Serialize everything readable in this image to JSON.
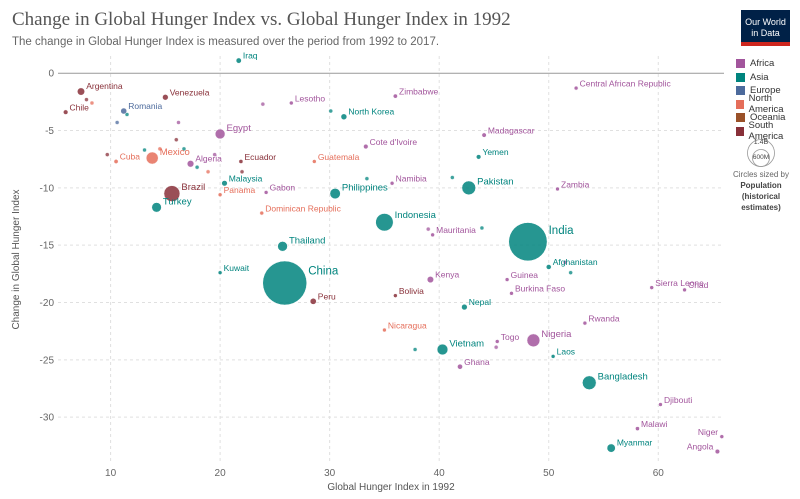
{
  "header": {
    "title": "Change in Global Hunger Index vs. Global Hunger Index in 1992",
    "subtitle": "The change in Global Hunger Index is measured over the period from 1992 to 2017.",
    "logo_line1": "Our World",
    "logo_line2": "in Data"
  },
  "legend": {
    "items": [
      {
        "label": "Africa",
        "color": "#a2559c"
      },
      {
        "label": "Asia",
        "color": "#00847e"
      },
      {
        "label": "Europe",
        "color": "#4c6a9c"
      },
      {
        "label": "North America",
        "color": "#e56e5a"
      },
      {
        "label": "Oceania",
        "color": "#9a5129"
      },
      {
        "label": "South America",
        "color": "#883039"
      }
    ]
  },
  "size_legend": {
    "large_label": "1.4B",
    "small_label": "600M",
    "caption": "Circles sized by",
    "title_line1": "Population",
    "title_line2": "(historical",
    "title_line3": "estimates)"
  },
  "chart_data": {
    "type": "scatter",
    "title": "Change in Global Hunger Index vs. Global Hunger Index in 1992",
    "subtitle": "The change in Global Hunger Index is measured over the period from 1992 to 2017.",
    "xlabel": "Global Hunger Index in 1992",
    "ylabel": "Change in Global Hunger Index",
    "xlim": [
      5.2,
      66
    ],
    "ylim": [
      -34,
      1.5
    ],
    "xticks": [
      10,
      20,
      30,
      40,
      50,
      60
    ],
    "yticks": [
      0,
      -5,
      -10,
      -15,
      -20,
      -25,
      -30
    ],
    "grid": true,
    "legend_position": "right",
    "points": [
      {
        "label": "Iraq",
        "x": 21.7,
        "y": 1.1,
        "continent": "Asia",
        "pop": 17
      },
      {
        "label": "Argentina",
        "x": 7.3,
        "y": -1.6,
        "continent": "South America",
        "pop": 33
      },
      {
        "label": "Chile",
        "x": 5.9,
        "y": -3.4,
        "continent": "South America",
        "pop": 13
      },
      {
        "label": "Venezuela",
        "x": 15.0,
        "y": -2.1,
        "continent": "South America",
        "pop": 20
      },
      {
        "label": "Romania",
        "x": 11.2,
        "y": -3.3,
        "continent": "Europe",
        "pop": 22
      },
      {
        "label": "Lesotho",
        "x": 26.5,
        "y": -2.6,
        "continent": "Africa",
        "pop": 1.7
      },
      {
        "label": "Zimbabwe",
        "x": 36.0,
        "y": -2.0,
        "continent": "Africa",
        "pop": 11
      },
      {
        "label": "Central African Republic",
        "x": 52.5,
        "y": -1.3,
        "continent": "Africa",
        "pop": 3
      },
      {
        "label": "North Korea",
        "x": 31.3,
        "y": -3.8,
        "continent": "Asia",
        "pop": 21
      },
      {
        "label": "Egypt",
        "x": 20.0,
        "y": -5.3,
        "continent": "Africa",
        "pop": 59
      },
      {
        "label": "Madagascar",
        "x": 44.1,
        "y": -5.4,
        "continent": "Africa",
        "pop": 12
      },
      {
        "label": "Cote d'Ivoire",
        "x": 33.3,
        "y": -6.4,
        "continent": "Africa",
        "pop": 13
      },
      {
        "label": "Yemen",
        "x": 43.6,
        "y": -7.3,
        "continent": "Asia",
        "pop": 13
      },
      {
        "label": "Cuba",
        "x": 10.5,
        "y": -7.7,
        "continent": "North America",
        "pop": 11
      },
      {
        "label": "Mexico",
        "x": 13.8,
        "y": -7.4,
        "continent": "North America",
        "pop": 88
      },
      {
        "label": "Algeria",
        "x": 17.3,
        "y": -7.9,
        "continent": "Africa",
        "pop": 27
      },
      {
        "label": "Ecuador",
        "x": 21.9,
        "y": -7.7,
        "continent": "South America",
        "pop": 10
      },
      {
        "label": "Guatemala",
        "x": 28.6,
        "y": -7.7,
        "continent": "North America",
        "pop": 9
      },
      {
        "label": "Malaysia",
        "x": 20.4,
        "y": -9.6,
        "continent": "Asia",
        "pop": 19
      },
      {
        "label": "Namibia",
        "x": 35.7,
        "y": -9.6,
        "continent": "Africa",
        "pop": 1.5
      },
      {
        "label": "Pakistan",
        "x": 42.7,
        "y": -10.0,
        "continent": "Asia",
        "pop": 115
      },
      {
        "label": "Zambia",
        "x": 50.8,
        "y": -10.1,
        "continent": "Africa",
        "pop": 8
      },
      {
        "label": "Brazil",
        "x": 15.6,
        "y": -10.5,
        "continent": "South America",
        "pop": 155
      },
      {
        "label": "Panama",
        "x": 20.0,
        "y": -10.6,
        "continent": "North America",
        "pop": 2.5
      },
      {
        "label": "Gabon",
        "x": 24.2,
        "y": -10.4,
        "continent": "Africa",
        "pop": 1
      },
      {
        "label": "Philippines",
        "x": 30.5,
        "y": -10.5,
        "continent": "Asia",
        "pop": 66
      },
      {
        "label": "Turkey",
        "x": 14.2,
        "y": -11.7,
        "continent": "Asia",
        "pop": 56
      },
      {
        "label": "Dominican Republic",
        "x": 23.8,
        "y": -12.2,
        "continent": "North America",
        "pop": 7.5
      },
      {
        "label": "Indonesia",
        "x": 35.0,
        "y": -13.0,
        "continent": "Asia",
        "pop": 185
      },
      {
        "label": "Mauritania",
        "x": 39.4,
        "y": -14.1,
        "continent": "Africa",
        "pop": 2.2
      },
      {
        "label": "India",
        "x": 48.1,
        "y": -14.7,
        "continent": "Asia",
        "pop": 890
      },
      {
        "label": "Thailand",
        "x": 25.7,
        "y": -15.1,
        "continent": "Asia",
        "pop": 58
      },
      {
        "label": "Kuwait",
        "x": 20.0,
        "y": -17.4,
        "continent": "Asia",
        "pop": 2
      },
      {
        "label": "China",
        "x": 25.9,
        "y": -18.3,
        "continent": "Asia",
        "pop": 1170
      },
      {
        "label": "Afghanistan",
        "x": 50.0,
        "y": -16.9,
        "continent": "Asia",
        "pop": 15
      },
      {
        "label": "Kenya",
        "x": 39.2,
        "y": -18.0,
        "continent": "Africa",
        "pop": 25
      },
      {
        "label": "Guinea",
        "x": 46.2,
        "y": -18.0,
        "continent": "Africa",
        "pop": 7
      },
      {
        "label": "Sierra Leone",
        "x": 59.4,
        "y": -18.7,
        "continent": "Africa",
        "pop": 4
      },
      {
        "label": "Chad",
        "x": 62.4,
        "y": -18.9,
        "continent": "Africa",
        "pop": 6.5
      },
      {
        "label": "Bolivia",
        "x": 36.0,
        "y": -19.4,
        "continent": "South America",
        "pop": 7
      },
      {
        "label": "Burkina Faso",
        "x": 46.6,
        "y": -19.2,
        "continent": "Africa",
        "pop": 9.5
      },
      {
        "label": "Peru",
        "x": 28.5,
        "y": -19.9,
        "continent": "South America",
        "pop": 23
      },
      {
        "label": "Nepal",
        "x": 42.3,
        "y": -20.4,
        "continent": "Asia",
        "pop": 20
      },
      {
        "label": "Rwanda",
        "x": 53.3,
        "y": -21.8,
        "continent": "Africa",
        "pop": 6
      },
      {
        "label": "Nicaragua",
        "x": 35.0,
        "y": -22.4,
        "continent": "North America",
        "pop": 4
      },
      {
        "label": "Togo",
        "x": 45.3,
        "y": -23.4,
        "continent": "Africa",
        "pop": 3.8
      },
      {
        "label": "Nigeria",
        "x": 48.6,
        "y": -23.3,
        "continent": "Africa",
        "pop": 100
      },
      {
        "label": "Vietnam",
        "x": 40.3,
        "y": -24.1,
        "continent": "Asia",
        "pop": 70
      },
      {
        "label": "Laos",
        "x": 50.4,
        "y": -24.7,
        "continent": "Asia",
        "pop": 4.4
      },
      {
        "label": "Ghana",
        "x": 41.9,
        "y": -25.6,
        "continent": "Africa",
        "pop": 16
      },
      {
        "label": "Bangladesh",
        "x": 53.7,
        "y": -27.0,
        "continent": "Asia",
        "pop": 115
      },
      {
        "label": "Djibouti",
        "x": 60.2,
        "y": -28.9,
        "continent": "Africa",
        "pop": 0.6
      },
      {
        "label": "Malawi",
        "x": 58.1,
        "y": -31.0,
        "continent": "Africa",
        "pop": 10
      },
      {
        "label": "Niger",
        "x": 65.8,
        "y": -31.7,
        "continent": "Africa",
        "pop": 8
      },
      {
        "label": "Myanmar",
        "x": 55.7,
        "y": -32.7,
        "continent": "Asia",
        "pop": 42
      },
      {
        "label": "Angola",
        "x": 65.4,
        "y": -33.0,
        "continent": "Africa",
        "pop": 13
      }
    ],
    "unlabeled_points": [
      {
        "x": 7.8,
        "y": -2.3,
        "continent": "South America",
        "pop": 3
      },
      {
        "x": 8.3,
        "y": -2.6,
        "continent": "North America",
        "pop": 3
      },
      {
        "x": 10.6,
        "y": -4.3,
        "continent": "Europe",
        "pop": 4
      },
      {
        "x": 11.5,
        "y": -3.6,
        "continent": "Asia",
        "pop": 4
      },
      {
        "x": 16.2,
        "y": -4.3,
        "continent": "Africa",
        "pop": 3
      },
      {
        "x": 9.7,
        "y": -7.1,
        "continent": "South America",
        "pop": 4
      },
      {
        "x": 13.1,
        "y": -6.7,
        "continent": "Asia",
        "pop": 4
      },
      {
        "x": 14.5,
        "y": -6.6,
        "continent": "North America",
        "pop": 4
      },
      {
        "x": 16.0,
        "y": -5.8,
        "continent": "South America",
        "pop": 5
      },
      {
        "x": 16.7,
        "y": -6.6,
        "continent": "Asia",
        "pop": 5
      },
      {
        "x": 17.9,
        "y": -8.2,
        "continent": "Asia",
        "pop": 4
      },
      {
        "x": 18.9,
        "y": -8.6,
        "continent": "North America",
        "pop": 3
      },
      {
        "x": 19.5,
        "y": -7.1,
        "continent": "Africa",
        "pop": 3
      },
      {
        "x": 22.0,
        "y": -8.6,
        "continent": "South America",
        "pop": 3
      },
      {
        "x": 23.9,
        "y": -2.7,
        "continent": "Africa",
        "pop": 2
      },
      {
        "x": 30.1,
        "y": -3.3,
        "continent": "Asia",
        "pop": 3
      },
      {
        "x": 33.4,
        "y": -9.2,
        "continent": "Asia",
        "pop": 3
      },
      {
        "x": 41.2,
        "y": -9.1,
        "continent": "Asia",
        "pop": 6
      },
      {
        "x": 39.0,
        "y": -13.6,
        "continent": "Africa",
        "pop": 3
      },
      {
        "x": 43.9,
        "y": -13.5,
        "continent": "Asia",
        "pop": 3
      },
      {
        "x": 51.5,
        "y": -16.5,
        "continent": "Africa",
        "pop": 3
      },
      {
        "x": 52.0,
        "y": -17.4,
        "continent": "Asia",
        "pop": 3
      },
      {
        "x": 37.8,
        "y": -24.1,
        "continent": "Asia",
        "pop": 3
      },
      {
        "x": 45.2,
        "y": -23.9,
        "continent": "Africa",
        "pop": 3
      }
    ]
  }
}
